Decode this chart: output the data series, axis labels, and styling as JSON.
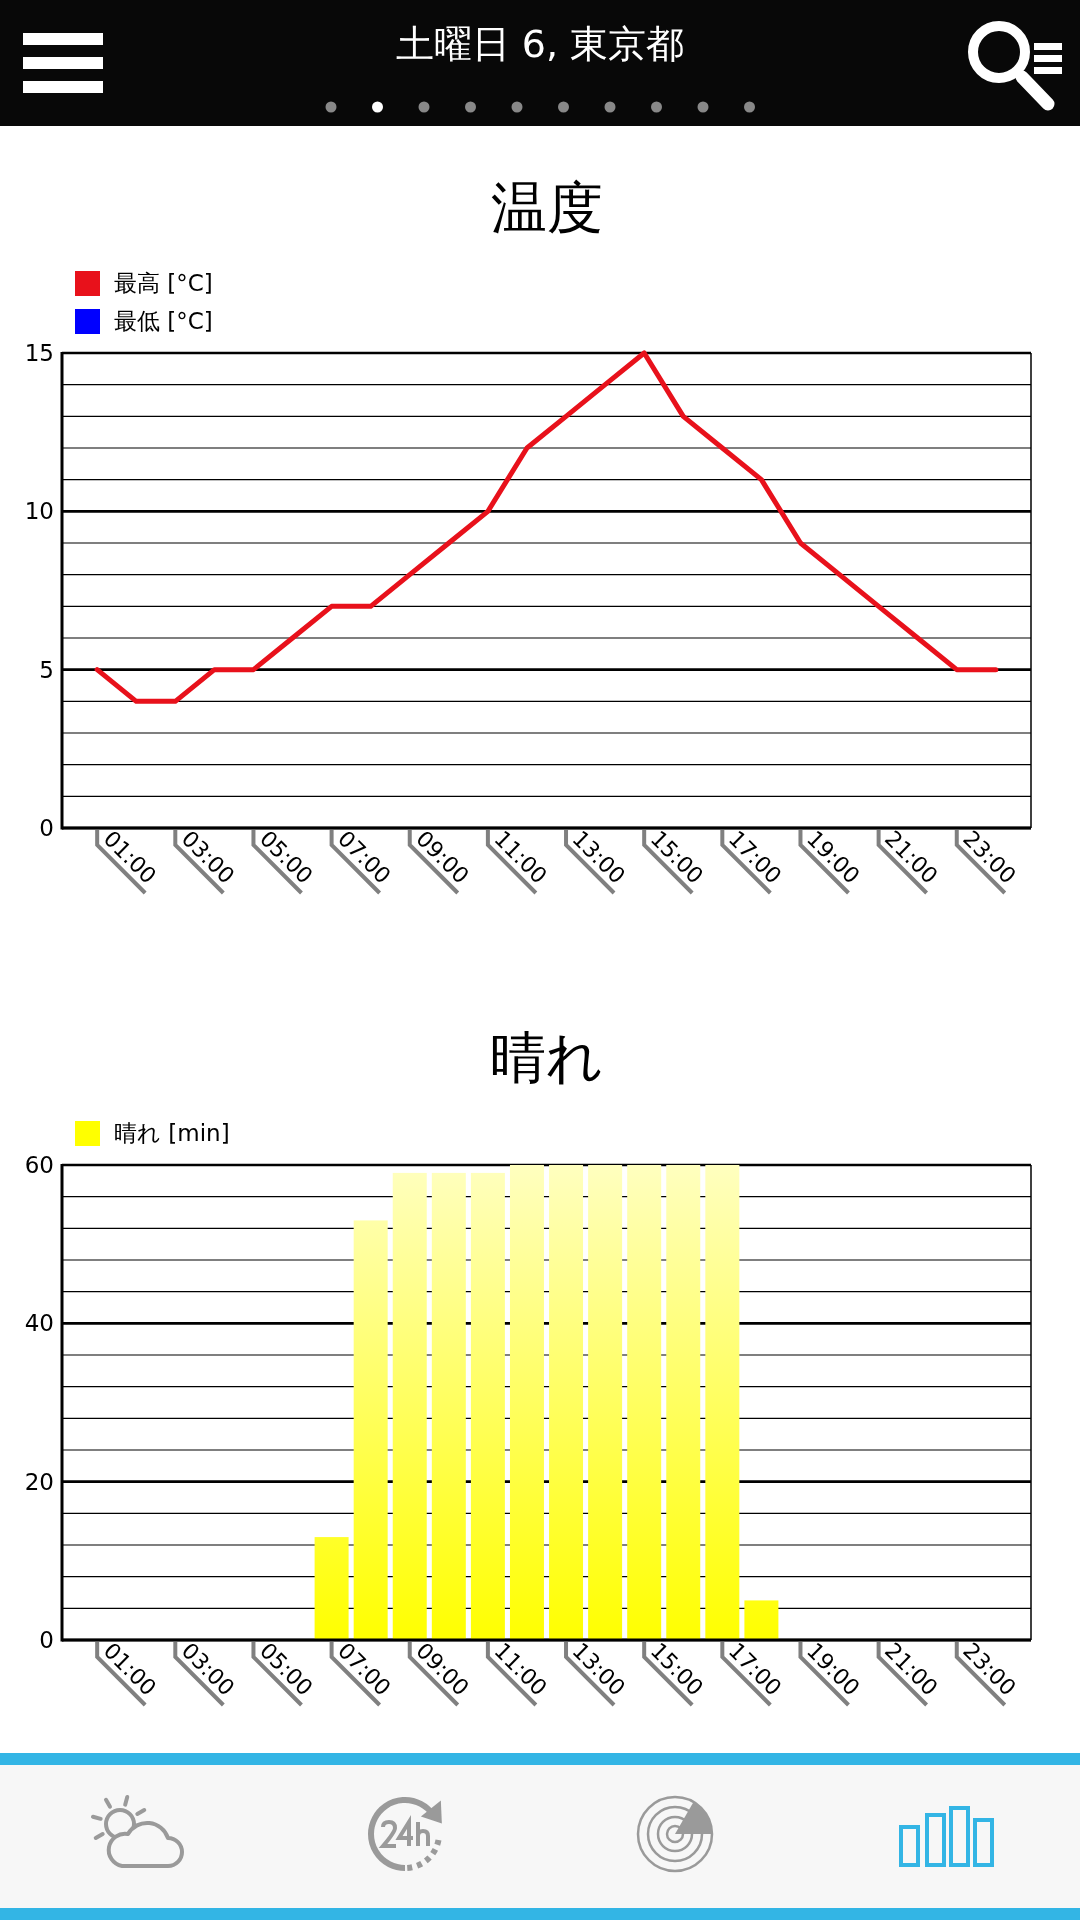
{
  "chart_data": [
    {
      "type": "line",
      "title": "温度",
      "annotations": [
        "土曜日 6, 東京都"
      ],
      "categories": [
        "01:00",
        null,
        "03:00",
        null,
        "05:00",
        null,
        "07:00",
        null,
        "09:00",
        null,
        "11:00",
        null,
        "13:00",
        null,
        "15:00",
        null,
        "17:00",
        null,
        "19:00",
        null,
        "21:00",
        null,
        "23:00",
        null
      ],
      "series": [
        {
          "name": "最高 [°C]",
          "color": "#e8111b",
          "values": [
            5,
            4,
            4,
            5,
            5,
            6,
            7,
            7,
            8,
            9,
            10,
            12,
            13,
            14,
            15,
            13,
            12,
            11,
            9,
            8,
            7,
            6,
            5,
            5
          ]
        },
        {
          "name": "最低 [°C]",
          "color": "#0000ff",
          "values": [
            null,
            null,
            null,
            null,
            null,
            null,
            null,
            null,
            null,
            null,
            null,
            null,
            null,
            null,
            null,
            null,
            null,
            null,
            null,
            null,
            null,
            null,
            null,
            null
          ]
        }
      ],
      "ylim": [
        0,
        15
      ],
      "yticks": [
        0,
        {
          "value": 1,
          "label": null
        },
        {
          "value": 2,
          "label": null
        },
        {
          "value": 3,
          "label": null
        },
        {
          "value": 4,
          "label": null
        },
        5,
        {
          "value": 6,
          "label": null
        },
        {
          "value": 7,
          "label": null
        },
        {
          "value": 8,
          "label": null
        },
        {
          "value": 9,
          "label": null
        },
        10,
        {
          "value": 11,
          "label": null
        },
        {
          "value": 12,
          "label": null
        },
        {
          "value": 13,
          "label": null
        },
        {
          "value": 14,
          "label": null
        },
        15
      ],
      "grid": "y",
      "legend": "top left"
    },
    {
      "type": "bar",
      "title": "晴れ",
      "categories": [
        "01:00",
        null,
        "03:00",
        null,
        "05:00",
        null,
        "07:00",
        null,
        "09:00",
        null,
        "11:00",
        null,
        "13:00",
        null,
        "15:00",
        null,
        "17:00",
        null,
        "19:00",
        null,
        "21:00",
        null,
        "23:00",
        null
      ],
      "series": [
        {
          "name": "晴れ [min]",
          "color": "#ffff00",
          "values": [
            0,
            0,
            0,
            0,
            0,
            0,
            13,
            53,
            59,
            59,
            59,
            60,
            60,
            60,
            60,
            60,
            60,
            5,
            0,
            0,
            0,
            0,
            0,
            0
          ]
        }
      ],
      "ylim": [
        0,
        60
      ],
      "yticks": [
        0,
        {
          "value": 4,
          "label": null
        },
        {
          "value": 8,
          "label": null
        },
        {
          "value": 12,
          "label": null
        },
        {
          "value": 16,
          "label": null
        },
        20,
        {
          "value": 24,
          "label": null
        },
        {
          "value": 28,
          "label": null
        },
        {
          "value": 32,
          "label": null
        },
        {
          "value": 36,
          "label": null
        },
        40,
        {
          "value": 44,
          "label": null
        },
        {
          "value": 48,
          "label": null
        },
        {
          "value": 52,
          "label": null
        },
        {
          "value": 56,
          "label": null
        },
        60
      ],
      "grid": "y",
      "legend": "top left"
    }
  ]
}
